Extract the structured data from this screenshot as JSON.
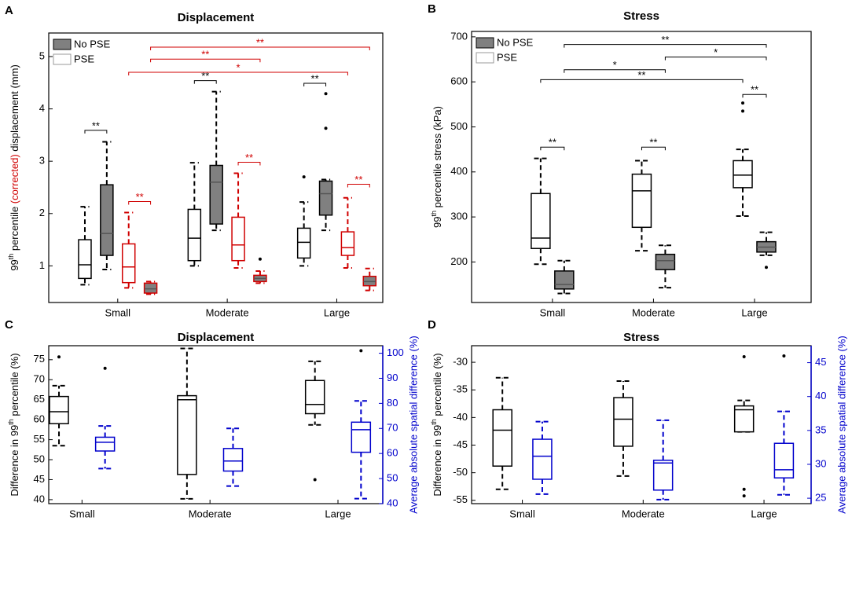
{
  "chart_data": [
    {
      "type": "box",
      "panel": "A",
      "title": "Displacement",
      "ylabel": [
        {
          "text": "99"
        },
        {
          "text": "th",
          "sup": true
        },
        {
          "text": " percentile "
        },
        {
          "text": "(corrected)",
          "color": "#d00000"
        },
        {
          "text": " displacement (mm)"
        }
      ],
      "categories": [
        "Small",
        "Moderate",
        "Large"
      ],
      "ylim": [
        0.3,
        5.45
      ],
      "yticks": [
        1,
        2,
        3,
        4,
        5
      ],
      "legend": "upper left",
      "series": [
        {
          "name": "PSE",
          "color": "#ffffff",
          "edge": "#000000",
          "median_color": "#000000",
          "boxes": [
            {
              "min": 0.64,
              "q1": 0.76,
              "median": 1.02,
              "q3": 1.5,
              "max": 2.13,
              "outliers": []
            },
            {
              "min": 1.0,
              "q1": 1.1,
              "median": 1.53,
              "q3": 2.08,
              "max": 2.97,
              "outliers": []
            },
            {
              "min": 1.0,
              "q1": 1.15,
              "median": 1.45,
              "q3": 1.72,
              "max": 2.22,
              "outliers": [
                2.7
              ]
            }
          ]
        },
        {
          "name": "No PSE",
          "color": "#808080",
          "edge": "#000000",
          "median_color": "#555555",
          "boxes": [
            {
              "min": 0.93,
              "q1": 1.2,
              "median": 1.62,
              "q3": 2.55,
              "max": 3.37,
              "outliers": []
            },
            {
              "min": 1.68,
              "q1": 1.8,
              "median": 2.6,
              "q3": 2.92,
              "max": 4.33,
              "outliers": []
            },
            {
              "min": 1.68,
              "q1": 1.97,
              "median": 2.38,
              "q3": 2.62,
              "max": 2.65,
              "outliers": [
                3.63,
                4.29
              ]
            }
          ]
        },
        {
          "color": "#ffffff",
          "edge": "#d00000",
          "median_color": "#d00000",
          "boxes": [
            {
              "min": 0.58,
              "q1": 0.68,
              "median": 0.98,
              "q3": 1.42,
              "max": 2.02,
              "outliers": []
            },
            {
              "min": 0.96,
              "q1": 1.1,
              "median": 1.4,
              "q3": 1.93,
              "max": 2.77,
              "outliers": []
            },
            {
              "min": 0.96,
              "q1": 1.2,
              "median": 1.35,
              "q3": 1.65,
              "max": 2.3,
              "outliers": []
            }
          ]
        },
        {
          "color": "#808080",
          "edge": "#d00000",
          "median_color": "#555555",
          "boxes": [
            {
              "min": 0.46,
              "q1": 0.48,
              "median": 0.56,
              "q3": 0.67,
              "max": 0.7,
              "outliers": []
            },
            {
              "min": 0.67,
              "q1": 0.7,
              "median": 0.76,
              "q3": 0.82,
              "max": 0.9,
              "outliers": [
                1.13
              ]
            },
            {
              "min": 0.53,
              "q1": 0.62,
              "median": 0.7,
              "q3": 0.8,
              "max": 0.95,
              "outliers": []
            }
          ]
        }
      ],
      "brackets": [
        {
          "label": "**",
          "color": "#000000",
          "y": 3.59,
          "from": [
            0,
            0
          ],
          "to": [
            0,
            1
          ]
        },
        {
          "label": "**",
          "color": "#d00000",
          "y": 2.23,
          "from": [
            0,
            2
          ],
          "to": [
            0,
            3
          ]
        },
        {
          "label": "**",
          "color": "#000000",
          "y": 4.54,
          "from": [
            1,
            0
          ],
          "to": [
            1,
            1
          ]
        },
        {
          "label": "**",
          "color": "#d00000",
          "y": 2.98,
          "from": [
            1,
            2
          ],
          "to": [
            1,
            3
          ]
        },
        {
          "label": "**",
          "color": "#000000",
          "y": 4.49,
          "from": [
            2,
            0
          ],
          "to": [
            2,
            1
          ]
        },
        {
          "label": "**",
          "color": "#d00000",
          "y": 2.56,
          "from": [
            2,
            2
          ],
          "to": [
            2,
            3
          ]
        },
        {
          "label": "*",
          "color": "#d00000",
          "y": 4.7,
          "from": [
            0,
            2
          ],
          "to": [
            2,
            2
          ]
        },
        {
          "label": "**",
          "color": "#d00000",
          "y": 4.95,
          "from": [
            0,
            3
          ],
          "to": [
            1,
            3
          ]
        },
        {
          "label": "**",
          "color": "#d00000",
          "y": 5.18,
          "from": [
            0,
            3
          ],
          "to": [
            2,
            3
          ]
        }
      ]
    },
    {
      "type": "box",
      "panel": "B",
      "title": "Stress",
      "ylabel": [
        {
          "text": "99"
        },
        {
          "text": "th",
          "sup": true
        },
        {
          "text": " percentile stress (kPa)"
        }
      ],
      "categories": [
        "Small",
        "Moderate",
        "Large"
      ],
      "ylim": [
        110,
        712
      ],
      "yticks": [
        200,
        300,
        400,
        500,
        600,
        700
      ],
      "legend": "upper left",
      "series": [
        {
          "name": "PSE",
          "color": "#ffffff",
          "edge": "#000000",
          "median_color": "#000000",
          "boxes": [
            {
              "min": 195,
              "q1": 230,
              "median": 253,
              "q3": 352,
              "max": 430,
              "outliers": []
            },
            {
              "min": 225,
              "q1": 277,
              "median": 358,
              "q3": 395,
              "max": 425,
              "outliers": []
            },
            {
              "min": 302,
              "q1": 365,
              "median": 393,
              "q3": 425,
              "max": 450,
              "outliers": [
                535,
                553
              ]
            }
          ]
        },
        {
          "name": "No PSE",
          "color": "#808080",
          "edge": "#000000",
          "median_color": "#555555",
          "boxes": [
            {
              "min": 130,
              "q1": 140,
              "median": 150,
              "q3": 180,
              "max": 203,
              "outliers": []
            },
            {
              "min": 143,
              "q1": 183,
              "median": 203,
              "q3": 217,
              "max": 237,
              "outliers": []
            },
            {
              "min": 215,
              "q1": 222,
              "median": 233,
              "q3": 245,
              "max": 266,
              "outliers": [
                188
              ]
            }
          ]
        }
      ],
      "brackets": [
        {
          "label": "**",
          "color": "#000000",
          "y": 455,
          "from": [
            0,
            0
          ],
          "to": [
            0,
            1
          ]
        },
        {
          "label": "**",
          "color": "#000000",
          "y": 455,
          "from": [
            1,
            0
          ],
          "to": [
            1,
            1
          ]
        },
        {
          "label": "**",
          "color": "#000000",
          "y": 572,
          "from": [
            2,
            0
          ],
          "to": [
            2,
            1
          ]
        },
        {
          "label": "**",
          "color": "#000000",
          "y": 605,
          "from": [
            0,
            0
          ],
          "to": [
            2,
            0
          ]
        },
        {
          "label": "*",
          "color": "#000000",
          "y": 627,
          "from": [
            0,
            1
          ],
          "to": [
            1,
            1
          ]
        },
        {
          "label": "*",
          "color": "#000000",
          "y": 655,
          "from": [
            1,
            1
          ],
          "to": [
            2,
            1
          ]
        },
        {
          "label": "**",
          "color": "#000000",
          "y": 683,
          "from": [
            0,
            1
          ],
          "to": [
            2,
            1
          ]
        }
      ]
    },
    {
      "type": "box",
      "panel": "C",
      "title": "Displacement",
      "ylabel": [
        {
          "text": "Difference in 99"
        },
        {
          "text": "th",
          "sup": true
        },
        {
          "text": " percentile (%)"
        }
      ],
      "y2label": "Average absolute spatial difference (%)",
      "y2color": "#0000cc",
      "categories": [
        "Small",
        "Moderate",
        "Large"
      ],
      "ylim": [
        39,
        78.5
      ],
      "yticks": [
        40,
        45,
        50,
        55,
        60,
        65,
        70,
        75
      ],
      "y2lim": [
        40,
        103
      ],
      "y2ticks": [
        40,
        50,
        60,
        70,
        80,
        90,
        100
      ],
      "series": [
        {
          "color": "#ffffff",
          "edge": "#000000",
          "median_color": "#000000",
          "boxes": [
            {
              "min": 53.5,
              "q1": 59,
              "median": 62,
              "q3": 65.8,
              "max": 68.5,
              "outliers": [
                75.7
              ]
            },
            {
              "min": 40.2,
              "q1": 46.3,
              "median": 65,
              "q3": 66,
              "max": 77.8,
              "outliers": []
            },
            {
              "min": 58.7,
              "q1": 61.5,
              "median": 63.8,
              "q3": 69.8,
              "max": 74.6,
              "outliers": [
                45
              ]
            }
          ]
        },
        {
          "axis": "y2",
          "color": "#ffffff",
          "edge": "#0000cc",
          "median_color": "#0000cc",
          "boxes": [
            {
              "min": 54,
              "q1": 61,
              "median": 64.5,
              "q3": 66.5,
              "max": 71,
              "outliers": [
                94
              ]
            },
            {
              "min": 47,
              "q1": 53,
              "median": 57,
              "q3": 62,
              "max": 70,
              "outliers": []
            },
            {
              "min": 42,
              "q1": 60.5,
              "median": 69.5,
              "q3": 72.5,
              "max": 81,
              "outliers": [
                101
              ]
            }
          ]
        }
      ]
    },
    {
      "type": "box",
      "panel": "D",
      "title": "Stress",
      "ylabel": [
        {
          "text": "Difference in 99"
        },
        {
          "text": "th",
          "sup": true
        },
        {
          "text": " percentile (%)"
        }
      ],
      "y2label": "Average absolute spatial difference (%)",
      "y2color": "#0000cc",
      "categories": [
        "Small",
        "Moderate",
        "Large"
      ],
      "ylim": [
        -55.6,
        -27
      ],
      "yticks": [
        -55,
        -50,
        -45,
        -40,
        -35,
        -30
      ],
      "y2lim": [
        24.2,
        47.5
      ],
      "y2ticks": [
        25,
        30,
        35,
        40,
        45
      ],
      "series": [
        {
          "color": "#ffffff",
          "edge": "#000000",
          "median_color": "#000000",
          "boxes": [
            {
              "min": -53,
              "q1": -48.8,
              "median": -42.3,
              "q3": -38.6,
              "max": -32.8,
              "outliers": []
            },
            {
              "min": -50.6,
              "q1": -45.2,
              "median": -40.3,
              "q3": -36.4,
              "max": -33.4,
              "outliers": []
            },
            {
              "min": -42.6,
              "q1": -42.6,
              "median": -38.6,
              "q3": -37.9,
              "max": -36.9,
              "outliers": [
                -29,
                -53,
                -54.2
              ]
            }
          ]
        },
        {
          "axis": "y2",
          "color": "#ffffff",
          "edge": "#0000cc",
          "median_color": "#0000cc",
          "boxes": [
            {
              "min": 25.6,
              "q1": 27.8,
              "median": 31.2,
              "q3": 33.7,
              "max": 36.3,
              "outliers": []
            },
            {
              "min": 24.8,
              "q1": 26.2,
              "median": 30.2,
              "q3": 30.6,
              "max": 36.5,
              "outliers": []
            },
            {
              "min": 25.5,
              "q1": 28,
              "median": 29.2,
              "q3": 33.1,
              "max": 37.8,
              "outliers": [
                46
              ]
            }
          ]
        }
      ]
    }
  ]
}
